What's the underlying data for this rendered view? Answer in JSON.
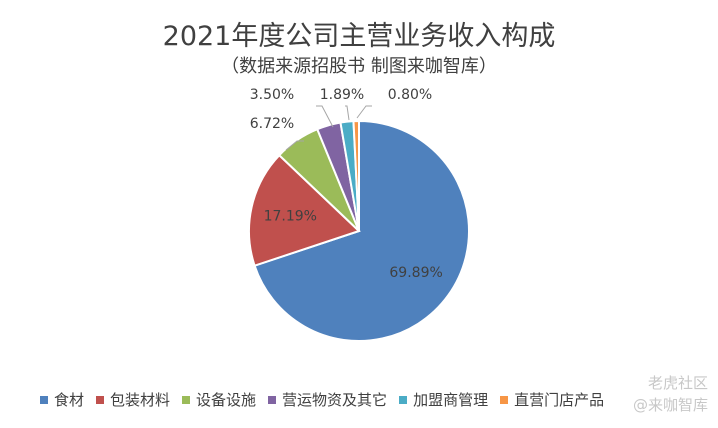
{
  "chart_data": {
    "type": "pie",
    "title": "2021年度公司主营业务收入构成",
    "subtitle": "（数据来源招股书 制图来咖智库）",
    "slices": [
      {
        "name": "食材",
        "value": 69.89,
        "label": "69.89%",
        "color": "#4f81bd"
      },
      {
        "name": "包装材料",
        "value": 17.19,
        "label": "17.19%",
        "color": "#c0504d"
      },
      {
        "name": "设备设施",
        "value": 6.72,
        "label": "6.72%",
        "color": "#9bbb59"
      },
      {
        "name": "营运物资及其它",
        "value": 3.5,
        "label": "3.50%",
        "color": "#8064a2"
      },
      {
        "name": "加盟商管理",
        "value": 1.89,
        "label": "1.89%",
        "color": "#4bacc6"
      },
      {
        "name": "直营门店产品",
        "value": 0.8,
        "label": "0.80%",
        "color": "#f79646"
      }
    ],
    "legend_position": "bottom"
  },
  "watermark": {
    "line1": "老虎社区",
    "line2": "@来咖智库"
  }
}
